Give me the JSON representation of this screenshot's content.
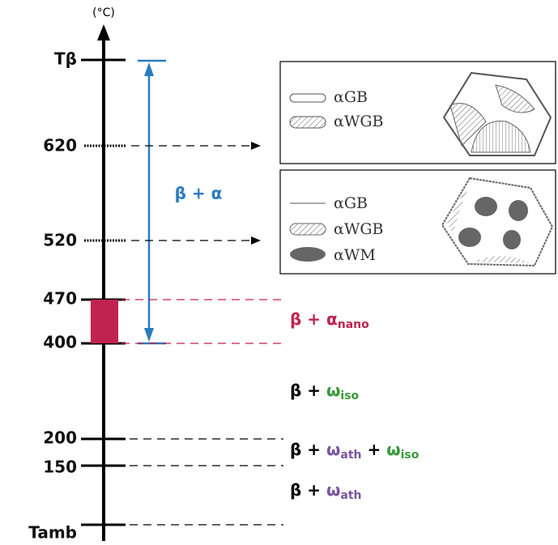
{
  "axis": {
    "unit": "(°C)",
    "ticks": [
      "Tβ",
      "620",
      "520",
      "470",
      "400",
      "200",
      "150",
      "Tamb"
    ]
  },
  "labels": {
    "beta_alpha": "β + α"
  },
  "phases": [
    [
      "β + ",
      "α",
      "nano"
    ],
    [
      "β + ",
      "ω",
      "iso"
    ],
    [
      "β + ",
      "ω",
      "ath",
      " + ",
      "ω",
      "iso"
    ],
    [
      "β + ",
      "ω",
      "ath"
    ]
  ],
  "legends": [
    {
      "items": [
        "αGB",
        "αWGB"
      ]
    },
    {
      "items": [
        "αGB",
        "αWGB",
        "αWM"
      ]
    }
  ]
}
